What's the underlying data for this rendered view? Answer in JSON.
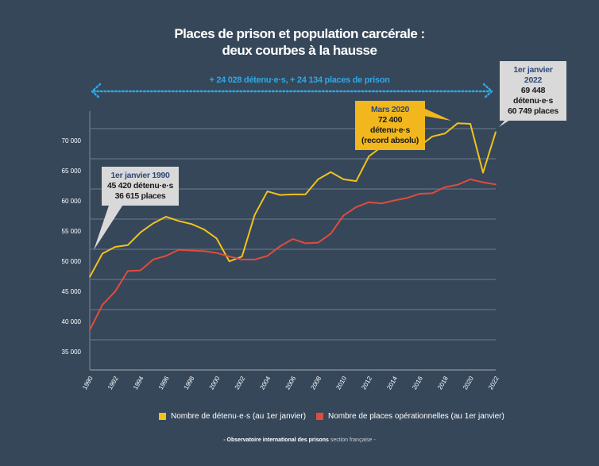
{
  "chart_data": {
    "type": "line",
    "title": "Places de prison et population carcérale :",
    "subtitle": "deux courbes à la hausse",
    "x": [
      1990,
      1991,
      1992,
      1993,
      1994,
      1995,
      1996,
      1997,
      1998,
      1999,
      2000,
      2001,
      2002,
      2003,
      2004,
      2005,
      2006,
      2007,
      2008,
      2009,
      2010,
      2011,
      2012,
      2013,
      2014,
      2015,
      2016,
      2017,
      2018,
      2019,
      2020,
      2021,
      2022
    ],
    "series": [
      {
        "name": "Nombre de détenu·e·s (au 1er janvier)",
        "color": "#f2c21b",
        "values": [
          45420,
          49300,
          50400,
          50700,
          52800,
          54300,
          55400,
          54700,
          54200,
          53300,
          51800,
          48000,
          48800,
          55700,
          59600,
          59000,
          59100,
          59100,
          61600,
          62800,
          61600,
          61300,
          65400,
          67000,
          67400,
          66800,
          67100,
          68700,
          69200,
          70900,
          70800,
          62700,
          69448
        ]
      },
      {
        "name": "Nombre de places opérationnelles (au 1er janvier)",
        "color": "#e04c3c",
        "values": [
          36615,
          40800,
          43000,
          46400,
          46500,
          48300,
          48900,
          49900,
          49800,
          49700,
          49400,
          48800,
          48300,
          48300,
          48900,
          50500,
          51700,
          51000,
          51100,
          52600,
          55600,
          57000,
          57800,
          57600,
          58100,
          58500,
          59200,
          59300,
          60300,
          60700,
          61600,
          61100,
          60749
        ]
      }
    ],
    "ylim": [
      30000,
      72900
    ],
    "yticks": [
      35000,
      40000,
      45000,
      50000,
      55000,
      60000,
      65000,
      70000
    ],
    "ytick_labels": [
      "35 000",
      "40 000",
      "45 000",
      "50 000",
      "55 000",
      "60 000",
      "65 000",
      "70 000"
    ],
    "xticks": [
      1990,
      1992,
      1994,
      1996,
      1998,
      2000,
      2002,
      2004,
      2006,
      2008,
      2010,
      2012,
      2014,
      2016,
      2018,
      2020,
      2022
    ],
    "grid": true,
    "legend": "bottom",
    "span_annotation": "+ 24 028 détenu·e·s, + 24 134 places de prison",
    "annotations": [
      {
        "head": "1er janvier 1990",
        "lines": [
          "45 420 détenu·e·s",
          "36 615 places"
        ]
      },
      {
        "head": "Mars 2020",
        "lines": [
          "72 400 détenu·e·s",
          "(record absolu)"
        ]
      },
      {
        "head": "1er janvier 2022",
        "lines": [
          "69 448 détenu·e·s",
          "60 749 places"
        ]
      }
    ],
    "legend_labels": [
      "Nombre de détenu·e·s (au 1er janvier)",
      "Nombre de places opérationnelles (au 1er janvier)"
    ]
  },
  "source": {
    "bold": "- Observatoire international des prisons",
    "normal": "section française -"
  },
  "colors": {
    "background": "#36475a",
    "grid": "#5b6b7c",
    "accent": "#2ea8e6"
  }
}
